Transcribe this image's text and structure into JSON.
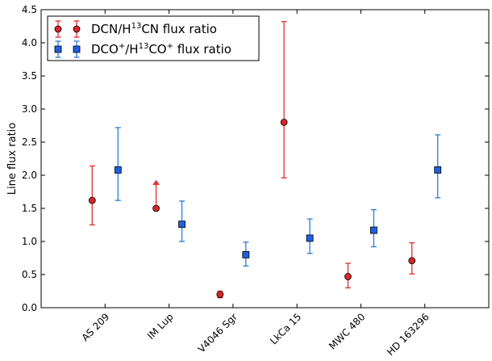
{
  "chart_data": {
    "type": "scatter",
    "ylabel": "Line flux ratio",
    "xlabel": "",
    "ylim": [
      0.0,
      4.5
    ],
    "yticks": [
      "0.0",
      "0.5",
      "1.0",
      "1.5",
      "2.0",
      "2.5",
      "3.0",
      "3.5",
      "4.0",
      "4.5"
    ],
    "categories": [
      "AS 209",
      "IM Lup",
      "V4046 Sgr",
      "LkCa 15",
      "MWC 480",
      "HD 163296"
    ],
    "grid": false,
    "legend_placement": "top-left",
    "series": [
      {
        "name": "DCN/H¹³CN flux ratio",
        "legend_main": "DCN/H",
        "legend_sup": "13",
        "legend_rest": "CN flux ratio",
        "marker": "circle",
        "color": "#d62728",
        "errorbar_color": "#e03030",
        "values": [
          1.62,
          1.5,
          0.2,
          2.8,
          0.47,
          0.71
        ],
        "yerr_low": [
          1.25,
          null,
          0.15,
          1.96,
          0.3,
          0.51
        ],
        "yerr_high": [
          2.14,
          null,
          0.25,
          4.32,
          0.67,
          0.98
        ],
        "lower_limit": [
          false,
          true,
          false,
          false,
          false,
          false
        ]
      },
      {
        "name": "DCO⁺/H¹³CO⁺ flux ratio",
        "legend_main": "DCO",
        "legend_sup": "+",
        "legend_mid": "/H",
        "legend_sup2": "13",
        "legend_mid2": "CO",
        "legend_sup3": "+",
        "legend_rest": " flux ratio",
        "marker": "square",
        "color": "#1f5fe0",
        "errorbar_color": "#2b7bdc",
        "values": [
          2.08,
          1.26,
          0.8,
          1.05,
          1.17,
          2.08
        ],
        "yerr_low": [
          1.62,
          1.0,
          0.63,
          0.82,
          0.92,
          1.66
        ],
        "yerr_high": [
          2.72,
          1.61,
          0.99,
          1.34,
          1.48,
          2.61
        ],
        "lower_limit": [
          false,
          false,
          false,
          false,
          false,
          false
        ]
      }
    ]
  }
}
